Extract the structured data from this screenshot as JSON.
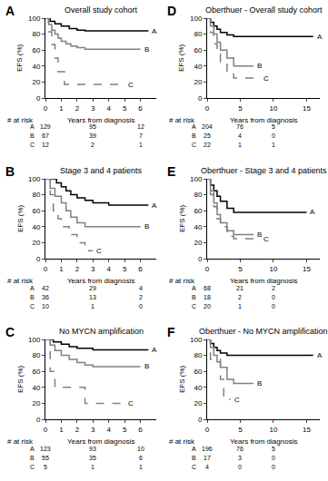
{
  "chart_data": [
    {
      "type": "step",
      "panel": "A",
      "title": "Overall study cohort",
      "xlabel": "Years from diagnosis",
      "ylabel": "EFS (%)",
      "xlim": [
        0,
        7
      ],
      "xticks": [
        0,
        1,
        2,
        3,
        4,
        5,
        6
      ],
      "ylim": [
        0,
        100
      ],
      "yticks": [
        0,
        20,
        40,
        60,
        80,
        100
      ],
      "grid": false,
      "at_risk_title": "# at risk",
      "at_risk_x": [
        0,
        3,
        6
      ],
      "series": [
        {
          "name": "A",
          "color": "#000000",
          "line_style": "solid",
          "x": [
            0,
            0.3,
            0.6,
            1,
            1.5,
            2,
            2.5,
            6.5
          ],
          "values": [
            100,
            96,
            93,
            90,
            87,
            85,
            84,
            84
          ],
          "at_risk": [
            129,
            95,
            12
          ]
        },
        {
          "name": "B",
          "color": "#808080",
          "line_style": "solid",
          "x": [
            0,
            0.2,
            0.4,
            0.6,
            0.8,
            1,
            1.3,
            1.6,
            2,
            2.5,
            6
          ],
          "values": [
            100,
            92,
            85,
            80,
            75,
            71,
            68,
            65,
            63,
            61,
            61
          ],
          "at_risk": [
            67,
            39,
            7
          ]
        },
        {
          "name": "C",
          "color": "#808080",
          "line_style": "dashed",
          "x": [
            0,
            0.2,
            0.4,
            0.6,
            0.8,
            1.2,
            5
          ],
          "values": [
            100,
            83,
            67,
            50,
            33,
            17,
            17
          ],
          "at_risk": [
            12,
            2,
            1
          ]
        }
      ]
    },
    {
      "type": "step",
      "panel": "B",
      "title": "Stage 3 and 4 patients",
      "xlabel": "Years from diagnosis",
      "ylabel": "EFS (%)",
      "xlim": [
        0,
        7
      ],
      "xticks": [
        0,
        1,
        2,
        3,
        4,
        5,
        6
      ],
      "ylim": [
        0,
        100
      ],
      "yticks": [
        0,
        20,
        40,
        60,
        80,
        100
      ],
      "grid": false,
      "at_risk_title": "# at risk",
      "at_risk_x": [
        0,
        3,
        6
      ],
      "series": [
        {
          "name": "A",
          "color": "#000000",
          "line_style": "solid",
          "x": [
            0,
            0.7,
            1,
            1.3,
            1.6,
            2,
            2.5,
            3,
            4,
            6.5
          ],
          "values": [
            100,
            95,
            90,
            85,
            80,
            76,
            73,
            70,
            67,
            67
          ],
          "at_risk": [
            42,
            29,
            4
          ]
        },
        {
          "name": "B",
          "color": "#808080",
          "line_style": "solid",
          "x": [
            0,
            0.3,
            0.6,
            1,
            1.3,
            1.6,
            2,
            2.5,
            6
          ],
          "values": [
            100,
            88,
            78,
            70,
            60,
            52,
            45,
            40,
            40
          ],
          "at_risk": [
            36,
            13,
            2
          ]
        },
        {
          "name": "C",
          "color": "#808080",
          "line_style": "dashed",
          "x": [
            0,
            0.3,
            0.5,
            0.8,
            1,
            1.5,
            2,
            2.5,
            3
          ],
          "values": [
            100,
            80,
            60,
            50,
            40,
            30,
            20,
            10,
            10
          ],
          "at_risk": [
            10,
            1,
            0
          ]
        }
      ]
    },
    {
      "type": "step",
      "panel": "C",
      "title": "No MYCN amplification",
      "xlabel": "Years from diagnosis",
      "ylabel": "EFS (%)",
      "xlim": [
        0,
        7
      ],
      "xticks": [
        0,
        1,
        2,
        3,
        4,
        5,
        6
      ],
      "ylim": [
        0,
        100
      ],
      "yticks": [
        0,
        20,
        40,
        60,
        80,
        100
      ],
      "grid": false,
      "at_risk_title": "# at risk",
      "at_risk_x": [
        0,
        3,
        6
      ],
      "series": [
        {
          "name": "A",
          "color": "#000000",
          "line_style": "solid",
          "x": [
            0,
            0.5,
            1,
            1.5,
            2,
            3,
            6.5
          ],
          "values": [
            100,
            97,
            94,
            91,
            89,
            87,
            87
          ],
          "at_risk": [
            123,
            93,
            10
          ]
        },
        {
          "name": "B",
          "color": "#808080",
          "line_style": "solid",
          "x": [
            0,
            0.3,
            0.6,
            1,
            1.5,
            2,
            2.5,
            3,
            6
          ],
          "values": [
            100,
            93,
            86,
            80,
            75,
            71,
            68,
            66,
            66
          ],
          "at_risk": [
            55,
            35,
            6
          ]
        },
        {
          "name": "C",
          "color": "#808080",
          "line_style": "dashed",
          "x": [
            0,
            0.3,
            0.6,
            2.5,
            5
          ],
          "values": [
            100,
            60,
            40,
            20,
            20
          ],
          "at_risk": [
            5,
            1,
            1
          ]
        }
      ]
    },
    {
      "type": "step",
      "panel": "D",
      "title": "Oberthuer - Overall study cohort",
      "xlabel": "Years from diagnosis",
      "ylabel": "EFS (%)",
      "xlim": [
        0,
        17
      ],
      "xticks": [
        0,
        5,
        10,
        15
      ],
      "ylim": [
        0,
        100
      ],
      "yticks": [
        0,
        20,
        40,
        60,
        80,
        100
      ],
      "grid": false,
      "at_risk_title": "# at risk",
      "at_risk_x": [
        0,
        5,
        10
      ],
      "series": [
        {
          "name": "A",
          "color": "#000000",
          "line_style": "solid",
          "x": [
            0,
            0.5,
            1,
            1.5,
            2,
            3,
            4,
            16
          ],
          "values": [
            100,
            95,
            90,
            86,
            82,
            79,
            77,
            77
          ],
          "at_risk": [
            204,
            76,
            5
          ]
        },
        {
          "name": "B",
          "color": "#808080",
          "line_style": "solid",
          "x": [
            0,
            0.5,
            1,
            1.5,
            2,
            3,
            4,
            7
          ],
          "values": [
            100,
            90,
            80,
            70,
            60,
            50,
            40,
            40
          ],
          "at_risk": [
            25,
            4,
            0
          ]
        },
        {
          "name": "C",
          "color": "#808080",
          "line_style": "dashed",
          "x": [
            0,
            0.5,
            1,
            1.5,
            2,
            3,
            4,
            8
          ],
          "values": [
            100,
            82,
            68,
            55,
            45,
            32,
            25,
            25
          ],
          "at_risk": [
            22,
            1,
            1
          ]
        }
      ]
    },
    {
      "type": "step",
      "panel": "E",
      "title": "Oberthuer - Stage 3 and 4 patients",
      "xlabel": "Years from diagnosis",
      "ylabel": "EFS (%)",
      "xlim": [
        0,
        17
      ],
      "xticks": [
        0,
        5,
        10,
        15
      ],
      "ylim": [
        0,
        100
      ],
      "yticks": [
        0,
        20,
        40,
        60,
        80,
        100
      ],
      "grid": false,
      "at_risk_title": "# at risk",
      "at_risk_x": [
        0,
        5,
        10
      ],
      "series": [
        {
          "name": "A",
          "color": "#000000",
          "line_style": "solid",
          "x": [
            0,
            0.5,
            1,
            1.5,
            2,
            3,
            4,
            15
          ],
          "values": [
            100,
            92,
            85,
            78,
            72,
            63,
            58,
            58
          ],
          "at_risk": [
            68,
            21,
            2
          ]
        },
        {
          "name": "B",
          "color": "#808080",
          "line_style": "solid",
          "x": [
            0,
            0.5,
            1,
            1.5,
            2,
            3,
            4,
            7
          ],
          "values": [
            100,
            85,
            70,
            55,
            45,
            35,
            30,
            30
          ],
          "at_risk": [
            18,
            2,
            0
          ]
        },
        {
          "name": "C",
          "color": "#808080",
          "line_style": "dashed",
          "x": [
            0,
            0.5,
            1,
            1.5,
            2,
            3,
            4,
            8
          ],
          "values": [
            100,
            80,
            65,
            50,
            40,
            28,
            25,
            25
          ],
          "at_risk": [
            20,
            1,
            0
          ]
        }
      ]
    },
    {
      "type": "step",
      "panel": "F",
      "title": "Oberthuer - No MYCN amplification",
      "xlabel": "Years from diagnosis",
      "ylabel": "EFS (%)",
      "xlim": [
        0,
        17
      ],
      "xticks": [
        0,
        5,
        10,
        15
      ],
      "ylim": [
        0,
        100
      ],
      "yticks": [
        0,
        20,
        40,
        60,
        80,
        100
      ],
      "grid": false,
      "at_risk_title": "# at risk",
      "at_risk_x": [
        0,
        5,
        10
      ],
      "series": [
        {
          "name": "A",
          "color": "#000000",
          "line_style": "solid",
          "x": [
            0,
            0.5,
            1,
            1.5,
            2,
            3,
            16
          ],
          "values": [
            100,
            95,
            90,
            86,
            83,
            80,
            80
          ],
          "at_risk": [
            196,
            76,
            5
          ]
        },
        {
          "name": "B",
          "color": "#808080",
          "line_style": "solid",
          "x": [
            0,
            0.5,
            1,
            1.5,
            2,
            3,
            4,
            7
          ],
          "values": [
            100,
            90,
            80,
            72,
            65,
            50,
            45,
            45
          ],
          "at_risk": [
            17,
            3,
            0
          ]
        },
        {
          "name": "C",
          "color": "#808080",
          "line_style": "dashed",
          "x": [
            0,
            0.5,
            1,
            2,
            2.5,
            3.5
          ],
          "values": [
            100,
            75,
            75,
            50,
            25,
            25
          ],
          "at_risk": [
            4,
            0,
            0
          ]
        }
      ]
    }
  ]
}
